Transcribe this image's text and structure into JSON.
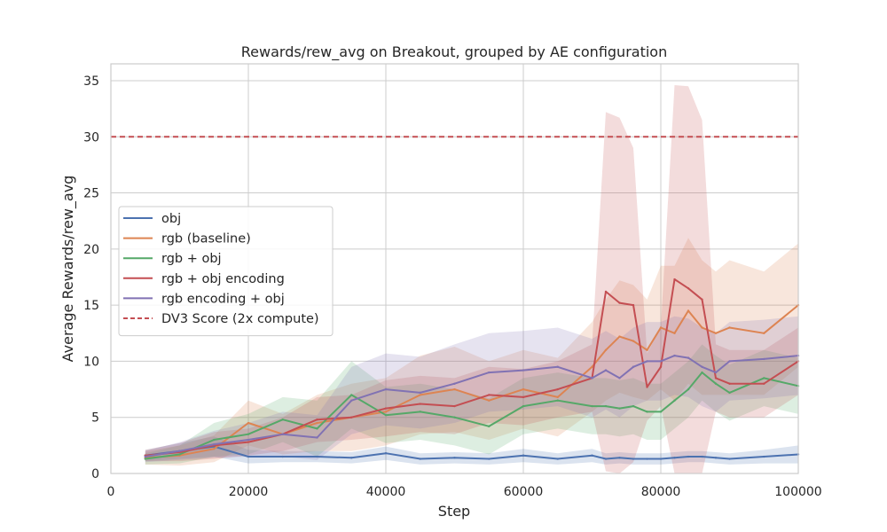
{
  "chart_data": {
    "type": "line",
    "title": "Rewards/rew_avg on Breakout, grouped by AE configuration",
    "xlabel": "Step",
    "ylabel": "Average Rewards/rew_avg",
    "xlim": [
      0,
      100000
    ],
    "ylim": [
      0,
      36.5
    ],
    "xticks": [
      0,
      20000,
      40000,
      60000,
      80000,
      100000
    ],
    "yticks": [
      0,
      5,
      10,
      15,
      20,
      25,
      30,
      35
    ],
    "grid": true,
    "legend_position": "center-left",
    "x": [
      5000,
      10000,
      15000,
      20000,
      25000,
      30000,
      35000,
      40000,
      45000,
      50000,
      55000,
      60000,
      65000,
      70000,
      72000,
      74000,
      76000,
      78000,
      80000,
      82000,
      84000,
      86000,
      88000,
      90000,
      95000,
      100000
    ],
    "series": [
      {
        "name": "obj",
        "color": "#4c72b0",
        "values": [
          1.6,
          2.0,
          2.4,
          1.5,
          1.5,
          1.5,
          1.4,
          1.8,
          1.3,
          1.4,
          1.3,
          1.6,
          1.3,
          1.6,
          1.3,
          1.4,
          1.3,
          1.3,
          1.3,
          1.4,
          1.5,
          1.5,
          1.4,
          1.3,
          1.5,
          1.7
        ],
        "band": [
          0.5,
          0.7,
          0.9,
          0.6,
          0.5,
          0.5,
          0.5,
          0.6,
          0.5,
          0.5,
          0.5,
          0.6,
          0.5,
          0.6,
          0.5,
          0.5,
          0.5,
          0.5,
          0.5,
          0.5,
          0.5,
          0.5,
          0.5,
          0.5,
          0.6,
          0.8
        ]
      },
      {
        "name": "rgb (baseline)",
        "color": "#dd8452",
        "values": [
          1.4,
          1.6,
          2.2,
          4.5,
          3.5,
          4.5,
          5.0,
          5.5,
          7.0,
          7.5,
          6.5,
          7.5,
          6.8,
          9.5,
          11.0,
          12.2,
          11.8,
          11.0,
          13.0,
          12.5,
          14.5,
          13.0,
          12.5,
          13.0,
          12.5,
          15.0
        ],
        "band": [
          0.6,
          0.9,
          1.2,
          2.0,
          1.8,
          2.5,
          3.0,
          3.0,
          3.5,
          3.8,
          3.5,
          3.5,
          3.5,
          4.0,
          4.5,
          5.0,
          5.0,
          4.5,
          5.5,
          6.0,
          6.5,
          6.0,
          5.5,
          6.0,
          5.5,
          5.5
        ]
      },
      {
        "name": "rgb + obj",
        "color": "#55a868",
        "values": [
          1.3,
          1.7,
          3.0,
          3.5,
          4.8,
          4.0,
          7.0,
          5.2,
          5.5,
          5.0,
          4.2,
          6.0,
          6.5,
          6.0,
          6.0,
          5.8,
          6.0,
          5.5,
          5.5,
          6.5,
          7.5,
          9.0,
          8.0,
          7.2,
          8.5,
          7.8
        ],
        "band": [
          0.5,
          0.8,
          1.5,
          1.8,
          2.0,
          2.5,
          3.0,
          2.5,
          2.5,
          2.5,
          2.5,
          2.5,
          2.5,
          2.5,
          2.5,
          2.5,
          2.5,
          2.5,
          2.5,
          2.5,
          2.5,
          2.5,
          2.5,
          2.5,
          2.5,
          2.5
        ]
      },
      {
        "name": "rgb + obj encoding",
        "color": "#c44e52",
        "values": [
          1.6,
          1.9,
          2.5,
          2.8,
          3.5,
          4.8,
          5.0,
          5.8,
          6.2,
          6.0,
          7.0,
          6.8,
          7.5,
          8.5,
          16.2,
          15.2,
          15.0,
          7.7,
          9.5,
          17.3,
          16.5,
          15.5,
          8.5,
          8.0,
          8.0,
          10.0
        ],
        "band": [
          0.5,
          0.8,
          1.2,
          1.2,
          1.5,
          2.0,
          2.0,
          2.5,
          2.5,
          2.5,
          2.5,
          2.5,
          2.5,
          3.0,
          16.0,
          16.5,
          14.0,
          3.0,
          3.5,
          17.3,
          18.0,
          16.0,
          3.0,
          3.0,
          3.0,
          3.0
        ]
      },
      {
        "name": "rgb encoding + obj",
        "color": "#8172b3",
        "values": [
          1.5,
          2.0,
          2.6,
          3.0,
          3.5,
          3.2,
          6.5,
          7.5,
          7.2,
          8.0,
          9.0,
          9.2,
          9.5,
          8.5,
          9.2,
          8.5,
          9.5,
          10.0,
          10.0,
          10.5,
          10.3,
          9.5,
          9.0,
          10.0,
          10.2,
          10.5
        ],
        "band": [
          0.5,
          0.8,
          1.2,
          1.5,
          2.0,
          2.0,
          3.0,
          3.2,
          3.2,
          3.5,
          3.5,
          3.5,
          3.5,
          3.5,
          3.5,
          3.5,
          3.5,
          3.5,
          3.5,
          3.5,
          3.5,
          3.5,
          3.5,
          3.5,
          3.5,
          3.5
        ]
      }
    ],
    "reference_lines": [
      {
        "name": "DV3 Score (2x compute)",
        "y": 30,
        "color": "#c44e52",
        "style": "dashed"
      }
    ]
  }
}
